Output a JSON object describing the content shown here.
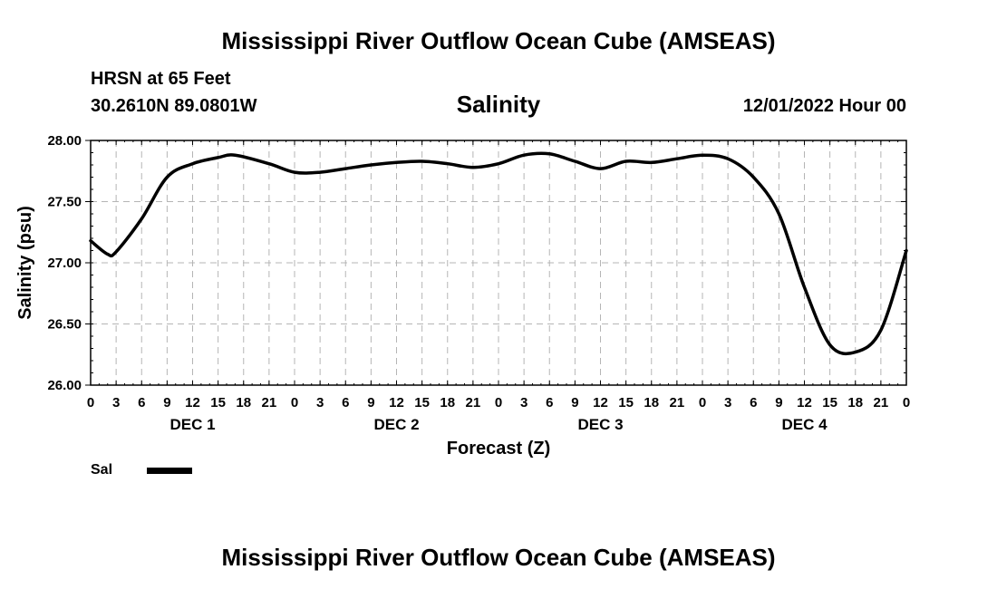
{
  "header": {
    "title": "Mississippi River Outflow Ocean Cube (AMSEAS)",
    "station": "HRSN at 65 Feet",
    "coordinates": "30.2610N  89.0801W",
    "datetime": "12/01/2022 Hour 00"
  },
  "footer": {
    "title": "Mississippi River Outflow Ocean Cube (AMSEAS)"
  },
  "legend": {
    "label": "Sal",
    "color": "#000000"
  },
  "chart_data": {
    "type": "line",
    "title": "Salinity",
    "xlabel": "Forecast (Z)",
    "ylabel": "Salinity (psu)",
    "ylim": [
      26.0,
      28.0
    ],
    "xlim": [
      0,
      96
    ],
    "y_ticks": [
      "26.00",
      "26.50",
      "27.00",
      "27.50",
      "28.00"
    ],
    "x_tick_labels": [
      "0",
      "3",
      "6",
      "9",
      "12",
      "15",
      "18",
      "21",
      "0",
      "3",
      "6",
      "9",
      "12",
      "15",
      "18",
      "21",
      "0",
      "3",
      "6",
      "9",
      "12",
      "15",
      "18",
      "21",
      "0",
      "3",
      "6",
      "9",
      "12",
      "15",
      "18",
      "21",
      "0"
    ],
    "day_labels": [
      {
        "label": "DEC 1",
        "hour": 12
      },
      {
        "label": "DEC 2",
        "hour": 36
      },
      {
        "label": "DEC 3",
        "hour": 60
      },
      {
        "label": "DEC 4",
        "hour": 84
      }
    ],
    "grid": true,
    "series": [
      {
        "name": "Sal",
        "x": [
          0,
          2,
          3,
          6,
          9,
          12,
          15,
          17,
          21,
          24,
          27,
          30,
          33,
          36,
          39,
          42,
          45,
          48,
          51,
          54,
          57,
          60,
          63,
          66,
          69,
          72,
          75,
          78,
          81,
          84,
          87,
          90,
          93,
          96
        ],
        "values": [
          27.18,
          27.07,
          27.09,
          27.36,
          27.7,
          27.81,
          27.86,
          27.88,
          27.81,
          27.74,
          27.74,
          27.77,
          27.8,
          27.82,
          27.83,
          27.81,
          27.78,
          27.81,
          27.88,
          27.89,
          27.83,
          27.77,
          27.83,
          27.82,
          27.85,
          27.88,
          27.85,
          27.7,
          27.4,
          26.8,
          26.33,
          26.27,
          26.45,
          27.1
        ]
      }
    ]
  }
}
